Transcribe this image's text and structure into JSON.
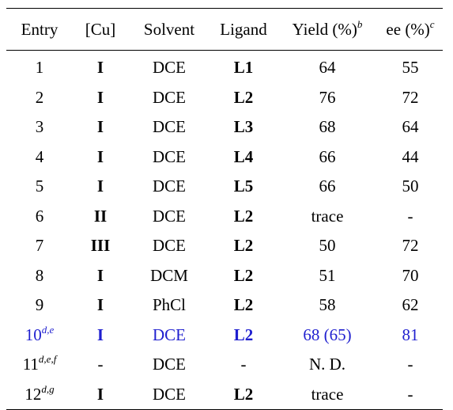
{
  "headers": {
    "entry": "Entry",
    "cu": "[Cu]",
    "solvent": "Solvent",
    "ligand": "Ligand",
    "yield": "Yield (%)",
    "yield_sup": "b",
    "ee": "ee (%)",
    "ee_sup": "c"
  },
  "rows": [
    {
      "entry": "1",
      "entry_sup": "",
      "cu": "I",
      "solvent": "DCE",
      "ligand": "L1",
      "yield": "64",
      "ee": "55"
    },
    {
      "entry": "2",
      "entry_sup": "",
      "cu": "I",
      "solvent": "DCE",
      "ligand": "L2",
      "yield": "76",
      "ee": "72"
    },
    {
      "entry": "3",
      "entry_sup": "",
      "cu": "I",
      "solvent": "DCE",
      "ligand": "L3",
      "yield": "68",
      "ee": "64"
    },
    {
      "entry": "4",
      "entry_sup": "",
      "cu": "I",
      "solvent": "DCE",
      "ligand": "L4",
      "yield": "66",
      "ee": "44"
    },
    {
      "entry": "5",
      "entry_sup": "",
      "cu": "I",
      "solvent": "DCE",
      "ligand": "L5",
      "yield": "66",
      "ee": "50"
    },
    {
      "entry": "6",
      "entry_sup": "",
      "cu": "II",
      "solvent": "DCE",
      "ligand": "L2",
      "yield": "trace",
      "ee": "-"
    },
    {
      "entry": "7",
      "entry_sup": "",
      "cu": "III",
      "solvent": "DCE",
      "ligand": "L2",
      "yield": "50",
      "ee": "72"
    },
    {
      "entry": "8",
      "entry_sup": "",
      "cu": "I",
      "solvent": "DCM",
      "ligand": "L2",
      "yield": "51",
      "ee": "70"
    },
    {
      "entry": "9",
      "entry_sup": "",
      "cu": "I",
      "solvent": "PhCl",
      "ligand": "L2",
      "yield": "58",
      "ee": "62"
    },
    {
      "entry": "10",
      "entry_sup": "d,e",
      "cu": "I",
      "solvent": "DCE",
      "ligand": "L2",
      "yield": "68 (65)",
      "ee": "81"
    },
    {
      "entry": "11",
      "entry_sup": "d,e,f",
      "cu": "-",
      "solvent": "DCE",
      "ligand": "-",
      "yield": "N. D.",
      "ee": "-"
    },
    {
      "entry": "12",
      "entry_sup": "d,g",
      "cu": "I",
      "solvent": "DCE",
      "ligand": "L2",
      "yield": "trace",
      "ee": "-"
    }
  ],
  "colors": {
    "text": "#000000",
    "highlight": "#1f1fcf",
    "background": "#ffffff"
  }
}
